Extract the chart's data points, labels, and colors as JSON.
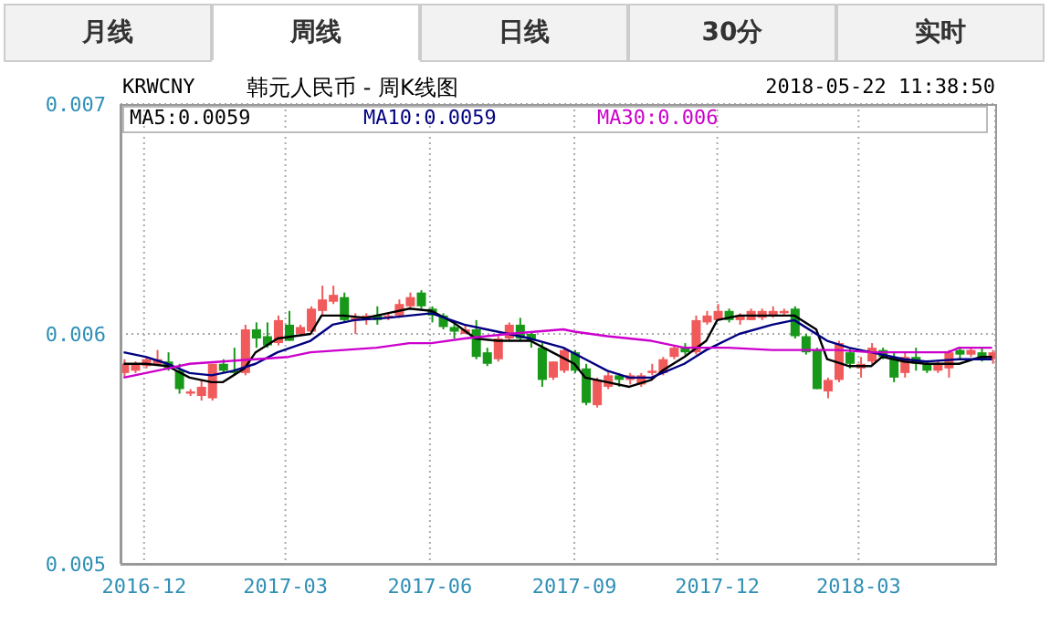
{
  "chart_data": {
    "type": "candlestick",
    "title": "韩元人民币 - 周K线图",
    "annotations": [
      "月线",
      "周线",
      "日线",
      "30分",
      "实时",
      "KRWCNY",
      "2018-05-22 11:38:50"
    ],
    "x": [
      "2016-11-18",
      "2016-11-25",
      "2016-12-02",
      "2016-12-09",
      "2016-12-16",
      "2016-12-23",
      "2016-12-30",
      "2017-01-06",
      "2017-01-13",
      "2017-01-20",
      "2017-01-27",
      "2017-02-03",
      "2017-02-10",
      "2017-02-17",
      "2017-02-24",
      "2017-03-03",
      "2017-03-10",
      "2017-03-17",
      "2017-03-24",
      "2017-03-31",
      "2017-04-07",
      "2017-04-14",
      "2017-04-21",
      "2017-04-28",
      "2017-05-05",
      "2017-05-12",
      "2017-05-19",
      "2017-05-26",
      "2017-06-02",
      "2017-06-09",
      "2017-06-16",
      "2017-06-23",
      "2017-06-30",
      "2017-07-07",
      "2017-07-14",
      "2017-07-21",
      "2017-07-28",
      "2017-08-04",
      "2017-08-11",
      "2017-08-18",
      "2017-08-25",
      "2017-09-01",
      "2017-09-08",
      "2017-09-15",
      "2017-09-22",
      "2017-09-29",
      "2017-10-06",
      "2017-10-13",
      "2017-10-20",
      "2017-10-27",
      "2017-11-03",
      "2017-11-10",
      "2017-11-17",
      "2017-11-24",
      "2017-12-01",
      "2017-12-08",
      "2017-12-15",
      "2017-12-22",
      "2017-12-29",
      "2018-01-05",
      "2018-01-12",
      "2018-01-19",
      "2018-01-26",
      "2018-02-02",
      "2018-02-09",
      "2018-02-16",
      "2018-02-23",
      "2018-03-02",
      "2018-03-09",
      "2018-03-16",
      "2018-03-23",
      "2018-03-30",
      "2018-04-06",
      "2018-04-13",
      "2018-04-20",
      "2018-04-27",
      "2018-05-04",
      "2018-05-11",
      "2018-05-18",
      "2018-05-25"
    ],
    "ohlc": [
      [
        0.00583,
        0.00589,
        0.00581,
        0.00587
      ],
      [
        0.00584,
        0.00588,
        0.00583,
        0.00587
      ],
      [
        0.00586,
        0.0059,
        0.00585,
        0.00589
      ],
      [
        0.00587,
        0.00593,
        0.00587,
        0.00589
      ],
      [
        0.00588,
        0.00592,
        0.00584,
        0.00585
      ],
      [
        0.00584,
        0.00587,
        0.00574,
        0.00576
      ],
      [
        0.00574,
        0.00576,
        0.00573,
        0.00575
      ],
      [
        0.00573,
        0.0058,
        0.00571,
        0.00577
      ],
      [
        0.00572,
        0.00587,
        0.00571,
        0.00587
      ],
      [
        0.00587,
        0.00589,
        0.00583,
        0.00584
      ],
      [
        0.00584,
        0.00594,
        0.00582,
        0.00583
      ],
      [
        0.00583,
        0.00604,
        0.00582,
        0.00602
      ],
      [
        0.00602,
        0.00605,
        0.00594,
        0.00598
      ],
      [
        0.00599,
        0.00605,
        0.00594,
        0.00595
      ],
      [
        0.00596,
        0.00608,
        0.00595,
        0.00606
      ],
      [
        0.00604,
        0.0061,
        0.00597,
        0.00597
      ],
      [
        0.006,
        0.00604,
        0.00599,
        0.00603
      ],
      [
        0.00601,
        0.00612,
        0.006,
        0.00611
      ],
      [
        0.0061,
        0.00621,
        0.00608,
        0.00615
      ],
      [
        0.00614,
        0.00621,
        0.00613,
        0.00617
      ],
      [
        0.00616,
        0.00618,
        0.00605,
        0.00606
      ],
      [
        0.00606,
        0.00609,
        0.006,
        0.00607
      ],
      [
        0.00606,
        0.00609,
        0.00604,
        0.00608
      ],
      [
        0.00608,
        0.00612,
        0.00604,
        0.00606
      ],
      [
        0.00607,
        0.00609,
        0.00606,
        0.00608
      ],
      [
        0.00608,
        0.00615,
        0.00607,
        0.00613
      ],
      [
        0.00612,
        0.00618,
        0.00611,
        0.00616
      ],
      [
        0.00618,
        0.00619,
        0.00611,
        0.00612
      ],
      [
        0.00611,
        0.00612,
        0.00605,
        0.00608
      ],
      [
        0.00608,
        0.00609,
        0.00602,
        0.00603
      ],
      [
        0.00603,
        0.00605,
        0.00598,
        0.00601
      ],
      [
        0.006,
        0.00604,
        0.006,
        0.00602
      ],
      [
        0.00602,
        0.00606,
        0.00589,
        0.0059
      ],
      [
        0.00592,
        0.00594,
        0.00586,
        0.00587
      ],
      [
        0.00589,
        0.00599,
        0.00588,
        0.00598
      ],
      [
        0.00598,
        0.00605,
        0.00597,
        0.00604
      ],
      [
        0.00604,
        0.00607,
        0.00597,
        0.00598
      ],
      [
        0.006,
        0.00601,
        0.00594,
        0.00597
      ],
      [
        0.00594,
        0.00596,
        0.00577,
        0.0058
      ],
      [
        0.00581,
        0.00588,
        0.0058,
        0.00588
      ],
      [
        0.00584,
        0.00594,
        0.00583,
        0.00593
      ],
      [
        0.00592,
        0.00593,
        0.00583,
        0.00584
      ],
      [
        0.00585,
        0.00587,
        0.00569,
        0.0057
      ],
      [
        0.00569,
        0.00581,
        0.00568,
        0.0058
      ],
      [
        0.00577,
        0.00584,
        0.00576,
        0.00582
      ],
      [
        0.00582,
        0.00583,
        0.00577,
        0.0058
      ],
      [
        0.0058,
        0.00583,
        0.00578,
        0.00582
      ],
      [
        0.00578,
        0.00583,
        0.00577,
        0.00582
      ],
      [
        0.00583,
        0.00587,
        0.00582,
        0.00584
      ],
      [
        0.00583,
        0.0059,
        0.00582,
        0.00589
      ],
      [
        0.0059,
        0.00595,
        0.00589,
        0.00594
      ],
      [
        0.00594,
        0.00596,
        0.00591,
        0.00592
      ],
      [
        0.00592,
        0.00608,
        0.00591,
        0.00606
      ],
      [
        0.00605,
        0.0061,
        0.00604,
        0.00608
      ],
      [
        0.00606,
        0.00613,
        0.00606,
        0.0061
      ],
      [
        0.0061,
        0.00611,
        0.00605,
        0.00606
      ],
      [
        0.00606,
        0.00609,
        0.00604,
        0.00608
      ],
      [
        0.00606,
        0.00611,
        0.00606,
        0.0061
      ],
      [
        0.00607,
        0.00611,
        0.00606,
        0.0061
      ],
      [
        0.00608,
        0.00612,
        0.00607,
        0.0061
      ],
      [
        0.00609,
        0.00611,
        0.00608,
        0.0061
      ],
      [
        0.00611,
        0.00612,
        0.00598,
        0.00599
      ],
      [
        0.00599,
        0.006,
        0.00591,
        0.00592
      ],
      [
        0.00593,
        0.00594,
        0.00576,
        0.00576
      ],
      [
        0.00575,
        0.00581,
        0.00572,
        0.0058
      ],
      [
        0.0058,
        0.00597,
        0.00579,
        0.00596
      ],
      [
        0.00592,
        0.00594,
        0.00585,
        0.00587
      ],
      [
        0.00585,
        0.0059,
        0.00581,
        0.00587
      ],
      [
        0.00588,
        0.00596,
        0.00587,
        0.00594
      ],
      [
        0.00593,
        0.00594,
        0.00589,
        0.0059
      ],
      [
        0.0059,
        0.00592,
        0.00579,
        0.00581
      ],
      [
        0.00583,
        0.00592,
        0.00581,
        0.0059
      ],
      [
        0.0059,
        0.00594,
        0.00584,
        0.00587
      ],
      [
        0.00587,
        0.00588,
        0.00583,
        0.00584
      ],
      [
        0.00584,
        0.00588,
        0.00583,
        0.00587
      ],
      [
        0.00585,
        0.00593,
        0.00581,
        0.00592
      ],
      [
        0.00593,
        0.00594,
        0.00589,
        0.00591
      ],
      [
        0.00591,
        0.00594,
        0.0059,
        0.00593
      ],
      [
        0.00592,
        0.00594,
        0.00588,
        0.00589
      ],
      [
        0.00589,
        0.00593,
        0.00587,
        0.00592
      ]
    ],
    "colors": [
      "#f05a5a",
      "#f05a5a",
      "#f05a5a",
      "#f05a5a",
      "#189818",
      "#189818",
      "#f05a5a",
      "#f05a5a",
      "#f05a5a",
      "#189818",
      "#189818",
      "#f05a5a",
      "#189818",
      "#189818",
      "#f05a5a",
      "#189818",
      "#f05a5a",
      "#f05a5a",
      "#f05a5a",
      "#f05a5a",
      "#189818",
      "#f05a5a",
      "#f05a5a",
      "#189818",
      "#f05a5a",
      "#f05a5a",
      "#f05a5a",
      "#189818",
      "#189818",
      "#189818",
      "#189818",
      "#f05a5a",
      "#189818",
      "#189818",
      "#f05a5a",
      "#f05a5a",
      "#189818",
      "#189818",
      "#189818",
      "#f05a5a",
      "#f05a5a",
      "#189818",
      "#189818",
      "#f05a5a",
      "#f05a5a",
      "#189818",
      "#f05a5a",
      "#f05a5a",
      "#f05a5a",
      "#f05a5a",
      "#f05a5a",
      "#189818",
      "#f05a5a",
      "#f05a5a",
      "#f05a5a",
      "#189818",
      "#f05a5a",
      "#f05a5a",
      "#f05a5a",
      "#f05a5a",
      "#f05a5a",
      "#189818",
      "#189818",
      "#189818",
      "#f05a5a",
      "#f05a5a",
      "#189818",
      "#f05a5a",
      "#f05a5a",
      "#189818",
      "#189818",
      "#f05a5a",
      "#189818",
      "#189818",
      "#f05a5a",
      "#f05a5a",
      "#189818",
      "#f05a5a",
      "#189818",
      "#f05a5a"
    ],
    "series": [
      {
        "type": "line",
        "name": "MA5:0.0059",
        "color": "#000000",
        "x": [
          "2016-11-18",
          "2016-12-02",
          "2016-12-16",
          "2016-12-30",
          "2017-01-13",
          "2017-01-20",
          "2017-02-03",
          "2017-02-10",
          "2017-02-24",
          "2017-03-17",
          "2017-03-24",
          "2017-04-07",
          "2017-04-21",
          "2017-05-05",
          "2017-05-19",
          "2017-06-02",
          "2017-06-16",
          "2017-06-30",
          "2017-07-14",
          "2017-07-28",
          "2017-08-04",
          "2017-08-18",
          "2017-09-01",
          "2017-09-08",
          "2017-09-22",
          "2017-10-06",
          "2017-10-20",
          "2017-10-27",
          "2017-11-10",
          "2017-11-24",
          "2017-12-01",
          "2017-12-15",
          "2017-12-29",
          "2018-01-19",
          "2018-02-02",
          "2018-02-09",
          "2018-02-23",
          "2018-03-09",
          "2018-03-16",
          "2018-03-30",
          "2018-04-13",
          "2018-05-04",
          "2018-05-18",
          "2018-05-25"
        ],
        "values": [
          0.00587,
          0.00587,
          0.00586,
          0.00581,
          0.00579,
          0.00579,
          0.00585,
          0.00592,
          0.00598,
          0.006,
          0.00608,
          0.00608,
          0.00607,
          0.00609,
          0.00611,
          0.0061,
          0.00605,
          0.00598,
          0.00597,
          0.00597,
          0.00597,
          0.00592,
          0.00587,
          0.00581,
          0.00579,
          0.00577,
          0.0058,
          0.00584,
          0.0059,
          0.00597,
          0.00606,
          0.00608,
          0.00608,
          0.00608,
          0.00602,
          0.00589,
          0.00586,
          0.00586,
          0.0059,
          0.00588,
          0.00587,
          0.00587,
          0.0059,
          0.0059
        ]
      },
      {
        "type": "line",
        "name": "MA10:0.0059",
        "color": "#000080",
        "x": [
          "2016-11-18",
          "2016-12-02",
          "2016-12-16",
          "2016-12-30",
          "2017-01-13",
          "2017-01-27",
          "2017-02-10",
          "2017-02-24",
          "2017-03-17",
          "2017-03-31",
          "2017-04-14",
          "2017-05-05",
          "2017-05-19",
          "2017-06-02",
          "2017-06-23",
          "2017-07-07",
          "2017-07-21",
          "2017-08-04",
          "2017-08-25",
          "2017-09-08",
          "2017-09-22",
          "2017-10-06",
          "2017-10-20",
          "2017-11-10",
          "2017-11-24",
          "2017-12-15",
          "2018-01-05",
          "2018-01-19",
          "2018-02-09",
          "2018-02-23",
          "2018-03-09",
          "2018-03-30",
          "2018-04-13",
          "2018-05-04",
          "2018-05-25"
        ],
        "values": [
          0.00592,
          0.0059,
          0.00587,
          0.00583,
          0.00582,
          0.00584,
          0.00587,
          0.00592,
          0.00597,
          0.00604,
          0.00606,
          0.00607,
          0.00608,
          0.00609,
          0.00604,
          0.00602,
          0.006,
          0.00598,
          0.00594,
          0.00589,
          0.00584,
          0.00581,
          0.00581,
          0.00587,
          0.00593,
          0.006,
          0.00604,
          0.00606,
          0.00597,
          0.00594,
          0.00592,
          0.00589,
          0.00588,
          0.00589,
          0.00589
        ]
      },
      {
        "type": "line",
        "name": "MA30:0.006",
        "color": "#cc00cc",
        "x": [
          "2016-11-18",
          "2016-12-16",
          "2016-12-30",
          "2017-01-20",
          "2017-02-10",
          "2017-03-03",
          "2017-03-17",
          "2017-04-07",
          "2017-04-28",
          "2017-05-19",
          "2017-06-02",
          "2017-06-23",
          "2017-07-21",
          "2017-08-25",
          "2017-09-01",
          "2017-09-22",
          "2017-10-20",
          "2017-11-10",
          "2017-12-08",
          "2018-01-05",
          "2018-02-16",
          "2018-03-09",
          "2018-03-30",
          "2018-04-27",
          "2018-05-04",
          "2018-05-25"
        ],
        "values": [
          0.00581,
          0.00585,
          0.00587,
          0.00588,
          0.00589,
          0.0059,
          0.00592,
          0.00593,
          0.00594,
          0.00596,
          0.00596,
          0.00598,
          0.006,
          0.00602,
          0.00601,
          0.00599,
          0.00597,
          0.00594,
          0.00594,
          0.00593,
          0.00593,
          0.00592,
          0.00592,
          0.00592,
          0.00594,
          0.00594
        ]
      }
    ],
    "xlim": [
      "2016-11-16",
      "2018-05-27"
    ],
    "xticks": [
      "2016-12",
      "2017-03",
      "2017-06",
      "2017-09",
      "2017-12",
      "2018-03"
    ],
    "ylim": [
      0.005,
      0.007
    ],
    "yticks": [
      0.005,
      0.006,
      0.007
    ],
    "grid": true,
    "legend": "top"
  }
}
